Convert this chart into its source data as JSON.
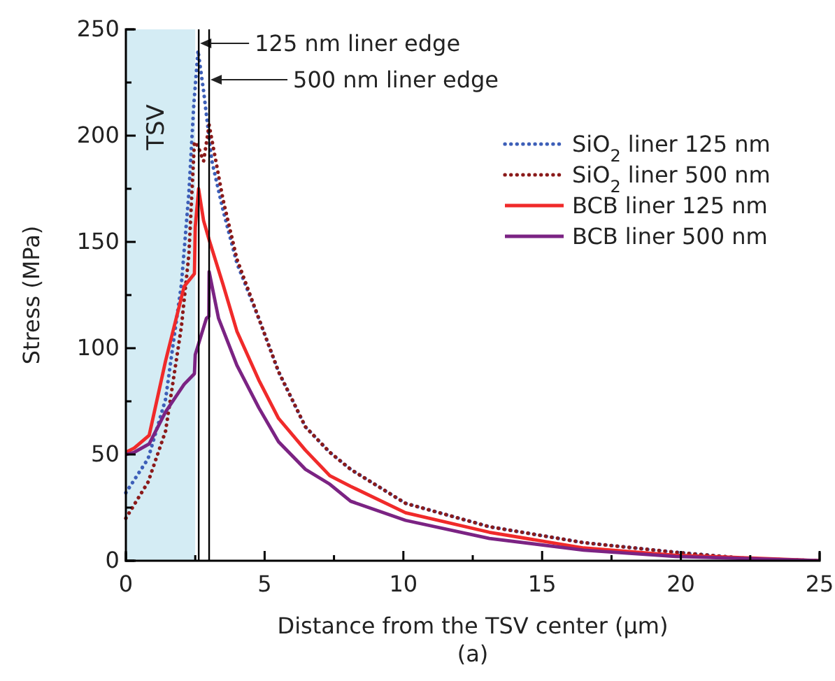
{
  "chart_data": {
    "type": "line",
    "xlabel": "Distance from the TSV center (µm)",
    "ylabel": "Stress (MPa)",
    "annotations": [
      "(a)"
    ],
    "xlim": [
      0,
      25
    ],
    "ylim": [
      0,
      250
    ],
    "xticks": [
      0,
      {
        "value": 2.5,
        "label": null
      },
      5,
      {
        "value": 7.5,
        "label": null
      },
      10,
      {
        "value": 12.5,
        "label": null
      },
      15,
      {
        "value": 17.5,
        "label": null
      },
      20,
      {
        "value": 22.5,
        "label": null
      },
      25
    ],
    "yticks": [
      0,
      {
        "value": 25,
        "label": null
      },
      50,
      {
        "value": 75,
        "label": null
      },
      100,
      {
        "value": 125,
        "label": null
      },
      150,
      {
        "value": 175,
        "label": null
      },
      200,
      {
        "value": 225,
        "label": null
      },
      250
    ],
    "grid": false,
    "legend": "top right",
    "marker": "none",
    "bands": [
      {
        "axis": "x",
        "from": 0,
        "to": 2.5,
        "label": "TSV",
        "color": "#d4ecf4"
      }
    ],
    "ref_lines": [
      {
        "axis": "x",
        "value": 2.625,
        "label": "125 nm liner edge",
        "color": "#000000"
      },
      {
        "axis": "x",
        "value": 3.0,
        "label": "500 nm liner edge",
        "color": "#000000"
      }
    ],
    "series": [
      {
        "name": "SiO$_{2}$ liner 125 nm",
        "color": "#3d5fb8",
        "line_style": "dotted",
        "x": [
          0,
          0.8,
          1.43,
          2.0,
          2.27,
          2.45,
          2.6,
          2.8,
          3.1,
          3.5,
          4.0,
          4.79,
          5.5,
          6.47,
          7.35,
          8.1,
          10.08,
          13.1,
          16.5,
          19.8,
          22.4,
          25
        ],
        "values": [
          32,
          48,
          76,
          130,
          173,
          215,
          240,
          221,
          188,
          165,
          140,
          114,
          89,
          63,
          51,
          43,
          27,
          16,
          8.5,
          4,
          1,
          0
        ]
      },
      {
        "name": "SiO$_{2}$ liner 500 nm",
        "color": "#8b1a1a",
        "line_style": "dotted",
        "x": [
          0,
          0.8,
          1.43,
          2.0,
          2.27,
          2.47,
          2.6,
          2.8,
          3.0,
          3.5,
          4.0,
          4.79,
          5.5,
          6.47,
          7.35,
          8.1,
          10.08,
          13.1,
          16.5,
          19.8,
          22.4,
          25
        ],
        "values": [
          20,
          37,
          61,
          110,
          144,
          197,
          195,
          188,
          205,
          170,
          142,
          114,
          89,
          63,
          51,
          43,
          27,
          16,
          8.5,
          4,
          1,
          0
        ]
      },
      {
        "name": "BCB liner 125 nm",
        "color": "#f02a2a",
        "line_style": "solid",
        "x": [
          0,
          0.3,
          0.84,
          1.43,
          2.1,
          2.47,
          2.5,
          2.62,
          2.8,
          3.0,
          3.5,
          4.0,
          4.79,
          5.5,
          6.47,
          7.35,
          8.1,
          10.08,
          13.1,
          16.5,
          19.8,
          25
        ],
        "values": [
          51,
          53,
          59,
          94,
          129,
          135,
          157,
          175,
          160,
          151,
          130,
          108,
          85,
          67,
          52,
          40,
          35,
          22.6,
          13.4,
          6,
          2.6,
          0
        ]
      },
      {
        "name": "BCB liner 500 nm",
        "color": "#7b2383",
        "line_style": "solid",
        "x": [
          0,
          0.3,
          0.84,
          1.43,
          2.1,
          2.47,
          2.5,
          2.9,
          2.99,
          3.0,
          3.34,
          4.0,
          4.79,
          5.5,
          6.47,
          7.35,
          8.1,
          10.08,
          13.1,
          16.5,
          19.8,
          25
        ],
        "values": [
          50,
          51,
          55,
          70,
          83,
          88,
          97,
          114,
          115,
          136,
          114,
          92,
          72,
          56,
          43,
          36,
          28,
          19,
          10.5,
          5,
          2,
          0
        ]
      }
    ]
  }
}
